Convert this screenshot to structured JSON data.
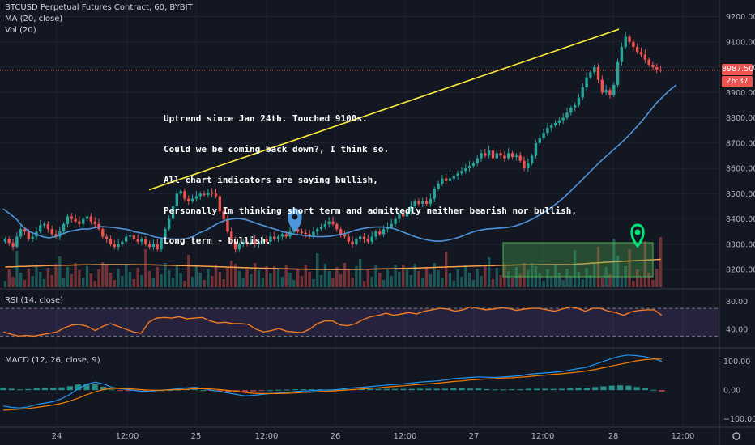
{
  "legend": {
    "main": "BTCUSD Perpetual Futures Contract, 60, BYBIT",
    "ma": "MA (20, close)",
    "vol": "Vol (20)",
    "rsi": "RSI (14, close)",
    "macd": "MACD (12, 26, close, 9)"
  },
  "annotation": {
    "lines": [
      "Uptrend since Jan 24th. Touched 9100s.",
      "Could we be coming back down?, I think so.",
      "All chart indicators are saying bullish,",
      "Personally Im thinking short term and admittedly neither bearish nor bullish,",
      "Long term - bullish."
    ]
  },
  "price_tags": {
    "last_price": "8987.50",
    "countdown": "26:37"
  },
  "colors": {
    "background": "#131722",
    "up": "#26a69a",
    "down": "#ef5350",
    "ma": "#4e96dc",
    "trendline": "#ffeb3b",
    "volume_ma": "#f5a04a",
    "rsi": "#f27a21",
    "rsi_band": "#7e57c2",
    "macd": "#2196f3",
    "signal": "#f57c00",
    "rect": "#4caf50",
    "marker_blue": "#4e96dc",
    "marker_green": "#00e676"
  },
  "chart_data": [
    {
      "type": "candlestick",
      "title": "BTCUSD Perpetual Futures Contract, 60, BYBIT",
      "x_ticks": [
        "24",
        "12:00",
        "25",
        "12:00",
        "26",
        "12:00",
        "27",
        "12:00",
        "28",
        "12:00"
      ],
      "y_ticks": [
        8200,
        8300,
        8400,
        8500,
        8600,
        8700,
        8800,
        8900,
        9000,
        9100,
        9200
      ],
      "ylim": [
        8130,
        9240
      ],
      "last_price": 8987.5,
      "grid": true,
      "candles_close": [
        8320,
        8305,
        8290,
        8330,
        8360,
        8350,
        8320,
        8330,
        8350,
        8375,
        8380,
        8360,
        8340,
        8330,
        8350,
        8380,
        8410,
        8400,
        8390,
        8380,
        8400,
        8410,
        8390,
        8380,
        8360,
        8330,
        8320,
        8300,
        8290,
        8300,
        8310,
        8330,
        8335,
        8320,
        8310,
        8320,
        8300,
        8290,
        8300,
        8280,
        8320,
        8360,
        8400,
        8450,
        8500,
        8510,
        8480,
        8470,
        8480,
        8490,
        8500,
        8495,
        8505,
        8500,
        8490,
        8430,
        8400,
        8350,
        8310,
        8280,
        8300,
        8310,
        8305,
        8315,
        8300,
        8310,
        8320,
        8310,
        8330,
        8320,
        8330,
        8340,
        8330,
        8350,
        8360,
        8350,
        8345,
        8340,
        8330,
        8350,
        8360,
        8370,
        8380,
        8390,
        8380,
        8360,
        8340,
        8330,
        8310,
        8300,
        8320,
        8330,
        8320,
        8310,
        8330,
        8350,
        8340,
        8360,
        8370,
        8380,
        8400,
        8420,
        8410,
        8430,
        8450,
        8470,
        8460,
        8470,
        8460,
        8480,
        8520,
        8540,
        8560,
        8550,
        8560,
        8570,
        8580,
        8590,
        8600,
        8610,
        8620,
        8640,
        8660,
        8650,
        8670,
        8640,
        8660,
        8650,
        8640,
        8660,
        8645,
        8650,
        8630,
        8600,
        8620,
        8650,
        8700,
        8720,
        8740,
        8760,
        8770,
        8780,
        8790,
        8800,
        8820,
        8840,
        8850,
        8880,
        8920,
        8960,
        8980,
        9000,
        8950,
        8900,
        8910,
        8890,
        8930,
        9020,
        9080,
        9120,
        9100,
        9080,
        9060,
        9050,
        9030,
        9010,
        9000,
        8990,
        8987.5
      ],
      "series": [
        {
          "name": "MA (20, close)",
          "values": [
            8440,
            8420,
            8400,
            8370,
            8350,
            8340,
            8330,
            8325,
            8330,
            8340,
            8350,
            8355,
            8360,
            8360,
            8365,
            8370,
            8368,
            8366,
            8362,
            8358,
            8350,
            8345,
            8340,
            8330,
            8325,
            8322,
            8320,
            8320,
            8322,
            8330,
            8345,
            8355,
            8370,
            8385,
            8395,
            8400,
            8402,
            8398,
            8390,
            8380,
            8372,
            8364,
            8356,
            8348,
            8342,
            8338,
            8335,
            8332,
            8330,
            8330,
            8332,
            8336,
            8340,
            8348,
            8356,
            8362,
            8366,
            8368,
            8368,
            8366,
            8360,
            8350,
            8340,
            8330,
            8322,
            8316,
            8312,
            8312,
            8316,
            8322,
            8330,
            8340,
            8350,
            8356,
            8360,
            8362,
            8364,
            8366,
            8370,
            8378,
            8388,
            8400,
            8415,
            8430,
            8448,
            8468,
            8490,
            8515,
            8540,
            8566,
            8592,
            8618,
            8642,
            8665,
            8688,
            8712,
            8738,
            8766,
            8796,
            8828,
            8860,
            8885,
            8910,
            8930
          ]
        }
      ]
    },
    {
      "type": "bar",
      "title": "Vol (20)",
      "note": "volume histogram with 20-period MA (orange)"
    },
    {
      "type": "line",
      "title": "RSI (14, close)",
      "y_ticks": [
        40,
        80
      ],
      "band": [
        30,
        70
      ],
      "ylim": [
        20,
        90
      ],
      "series": [
        {
          "name": "RSI (14, close)",
          "values": [
            36,
            33,
            30,
            31,
            30,
            32,
            34,
            36,
            42,
            46,
            47,
            44,
            38,
            44,
            48,
            44,
            40,
            36,
            34,
            50,
            56,
            57,
            56,
            58,
            55,
            56,
            57,
            52,
            49,
            50,
            48,
            48,
            47,
            40,
            36,
            38,
            41,
            37,
            36,
            35,
            40,
            48,
            52,
            52,
            46,
            45,
            48,
            54,
            58,
            60,
            63,
            60,
            62,
            64,
            62,
            66,
            68,
            70,
            69,
            66,
            68,
            72,
            70,
            68,
            69,
            71,
            70,
            67,
            69,
            70,
            70,
            68,
            66,
            69,
            72,
            70,
            66,
            70,
            70,
            66,
            64,
            60,
            65,
            67,
            68,
            68,
            60
          ]
        }
      ]
    },
    {
      "type": "line",
      "title": "MACD (12, 26, close, 9)",
      "y_ticks": [
        -100,
        0,
        100
      ],
      "ylim": [
        -115,
        130
      ],
      "series": [
        {
          "name": "MACD",
          "values": [
            -55,
            -60,
            -62,
            -58,
            -50,
            -45,
            -40,
            -30,
            -15,
            5,
            20,
            28,
            22,
            10,
            5,
            2,
            -2,
            -5,
            -3,
            0,
            2,
            5,
            8,
            10,
            5,
            0,
            -5,
            -10,
            -15,
            -20,
            -18,
            -15,
            -12,
            -10,
            -8,
            -5,
            -3,
            -2,
            0,
            0,
            2,
            5,
            8,
            10,
            12,
            15,
            18,
            20,
            22,
            25,
            28,
            30,
            32,
            35,
            40,
            42,
            44,
            46,
            45,
            44,
            46,
            48,
            50,
            55,
            58,
            60,
            62,
            65,
            70,
            75,
            80,
            90,
            100,
            110,
            118,
            122,
            120,
            116,
            110,
            100
          ]
        },
        {
          "name": "Signal",
          "values": [
            -70,
            -68,
            -66,
            -64,
            -60,
            -56,
            -52,
            -46,
            -38,
            -28,
            -16,
            -6,
            2,
            6,
            6,
            5,
            3,
            1,
            0,
            0,
            1,
            2,
            3,
            5,
            5,
            4,
            2,
            -1,
            -4,
            -8,
            -11,
            -12,
            -12,
            -12,
            -11,
            -10,
            -8,
            -7,
            -5,
            -4,
            -2,
            0,
            2,
            4,
            6,
            8,
            11,
            13,
            15,
            18,
            20,
            22,
            24,
            27,
            30,
            32,
            35,
            37,
            39,
            40,
            42,
            43,
            45,
            47,
            50,
            52,
            55,
            57,
            60,
            63,
            67,
            72,
            78,
            84,
            90,
            96,
            102,
            106,
            108,
            108
          ]
        }
      ]
    }
  ]
}
